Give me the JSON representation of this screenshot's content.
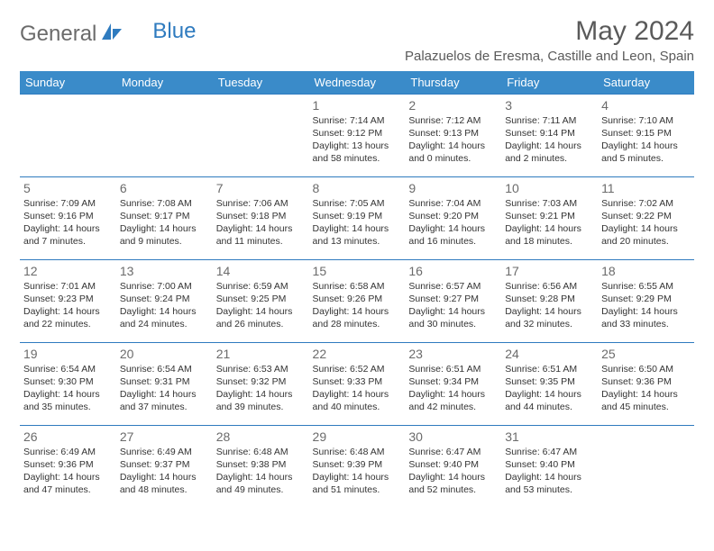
{
  "logo": {
    "text1": "General",
    "text2": "Blue"
  },
  "title": "May 2024",
  "location": "Palazuelos de Eresma, Castille and Leon, Spain",
  "colors": {
    "header_bg": "#3a8bc9",
    "header_text": "#ffffff",
    "cell_border": "#2f7bbf",
    "body_text": "#333333",
    "muted": "#6b6b6b",
    "logo_blue": "#2f7bbf"
  },
  "weekdays": [
    "Sunday",
    "Monday",
    "Tuesday",
    "Wednesday",
    "Thursday",
    "Friday",
    "Saturday"
  ],
  "weeks": [
    [
      null,
      null,
      null,
      {
        "n": "1",
        "sr": "7:14 AM",
        "ss": "9:12 PM",
        "dl": "13 hours and 58 minutes."
      },
      {
        "n": "2",
        "sr": "7:12 AM",
        "ss": "9:13 PM",
        "dl": "14 hours and 0 minutes."
      },
      {
        "n": "3",
        "sr": "7:11 AM",
        "ss": "9:14 PM",
        "dl": "14 hours and 2 minutes."
      },
      {
        "n": "4",
        "sr": "7:10 AM",
        "ss": "9:15 PM",
        "dl": "14 hours and 5 minutes."
      }
    ],
    [
      {
        "n": "5",
        "sr": "7:09 AM",
        "ss": "9:16 PM",
        "dl": "14 hours and 7 minutes."
      },
      {
        "n": "6",
        "sr": "7:08 AM",
        "ss": "9:17 PM",
        "dl": "14 hours and 9 minutes."
      },
      {
        "n": "7",
        "sr": "7:06 AM",
        "ss": "9:18 PM",
        "dl": "14 hours and 11 minutes."
      },
      {
        "n": "8",
        "sr": "7:05 AM",
        "ss": "9:19 PM",
        "dl": "14 hours and 13 minutes."
      },
      {
        "n": "9",
        "sr": "7:04 AM",
        "ss": "9:20 PM",
        "dl": "14 hours and 16 minutes."
      },
      {
        "n": "10",
        "sr": "7:03 AM",
        "ss": "9:21 PM",
        "dl": "14 hours and 18 minutes."
      },
      {
        "n": "11",
        "sr": "7:02 AM",
        "ss": "9:22 PM",
        "dl": "14 hours and 20 minutes."
      }
    ],
    [
      {
        "n": "12",
        "sr": "7:01 AM",
        "ss": "9:23 PM",
        "dl": "14 hours and 22 minutes."
      },
      {
        "n": "13",
        "sr": "7:00 AM",
        "ss": "9:24 PM",
        "dl": "14 hours and 24 minutes."
      },
      {
        "n": "14",
        "sr": "6:59 AM",
        "ss": "9:25 PM",
        "dl": "14 hours and 26 minutes."
      },
      {
        "n": "15",
        "sr": "6:58 AM",
        "ss": "9:26 PM",
        "dl": "14 hours and 28 minutes."
      },
      {
        "n": "16",
        "sr": "6:57 AM",
        "ss": "9:27 PM",
        "dl": "14 hours and 30 minutes."
      },
      {
        "n": "17",
        "sr": "6:56 AM",
        "ss": "9:28 PM",
        "dl": "14 hours and 32 minutes."
      },
      {
        "n": "18",
        "sr": "6:55 AM",
        "ss": "9:29 PM",
        "dl": "14 hours and 33 minutes."
      }
    ],
    [
      {
        "n": "19",
        "sr": "6:54 AM",
        "ss": "9:30 PM",
        "dl": "14 hours and 35 minutes."
      },
      {
        "n": "20",
        "sr": "6:54 AM",
        "ss": "9:31 PM",
        "dl": "14 hours and 37 minutes."
      },
      {
        "n": "21",
        "sr": "6:53 AM",
        "ss": "9:32 PM",
        "dl": "14 hours and 39 minutes."
      },
      {
        "n": "22",
        "sr": "6:52 AM",
        "ss": "9:33 PM",
        "dl": "14 hours and 40 minutes."
      },
      {
        "n": "23",
        "sr": "6:51 AM",
        "ss": "9:34 PM",
        "dl": "14 hours and 42 minutes."
      },
      {
        "n": "24",
        "sr": "6:51 AM",
        "ss": "9:35 PM",
        "dl": "14 hours and 44 minutes."
      },
      {
        "n": "25",
        "sr": "6:50 AM",
        "ss": "9:36 PM",
        "dl": "14 hours and 45 minutes."
      }
    ],
    [
      {
        "n": "26",
        "sr": "6:49 AM",
        "ss": "9:36 PM",
        "dl": "14 hours and 47 minutes."
      },
      {
        "n": "27",
        "sr": "6:49 AM",
        "ss": "9:37 PM",
        "dl": "14 hours and 48 minutes."
      },
      {
        "n": "28",
        "sr": "6:48 AM",
        "ss": "9:38 PM",
        "dl": "14 hours and 49 minutes."
      },
      {
        "n": "29",
        "sr": "6:48 AM",
        "ss": "9:39 PM",
        "dl": "14 hours and 51 minutes."
      },
      {
        "n": "30",
        "sr": "6:47 AM",
        "ss": "9:40 PM",
        "dl": "14 hours and 52 minutes."
      },
      {
        "n": "31",
        "sr": "6:47 AM",
        "ss": "9:40 PM",
        "dl": "14 hours and 53 minutes."
      },
      null
    ]
  ],
  "labels": {
    "sunrise": "Sunrise:",
    "sunset": "Sunset:",
    "daylight": "Daylight:"
  }
}
